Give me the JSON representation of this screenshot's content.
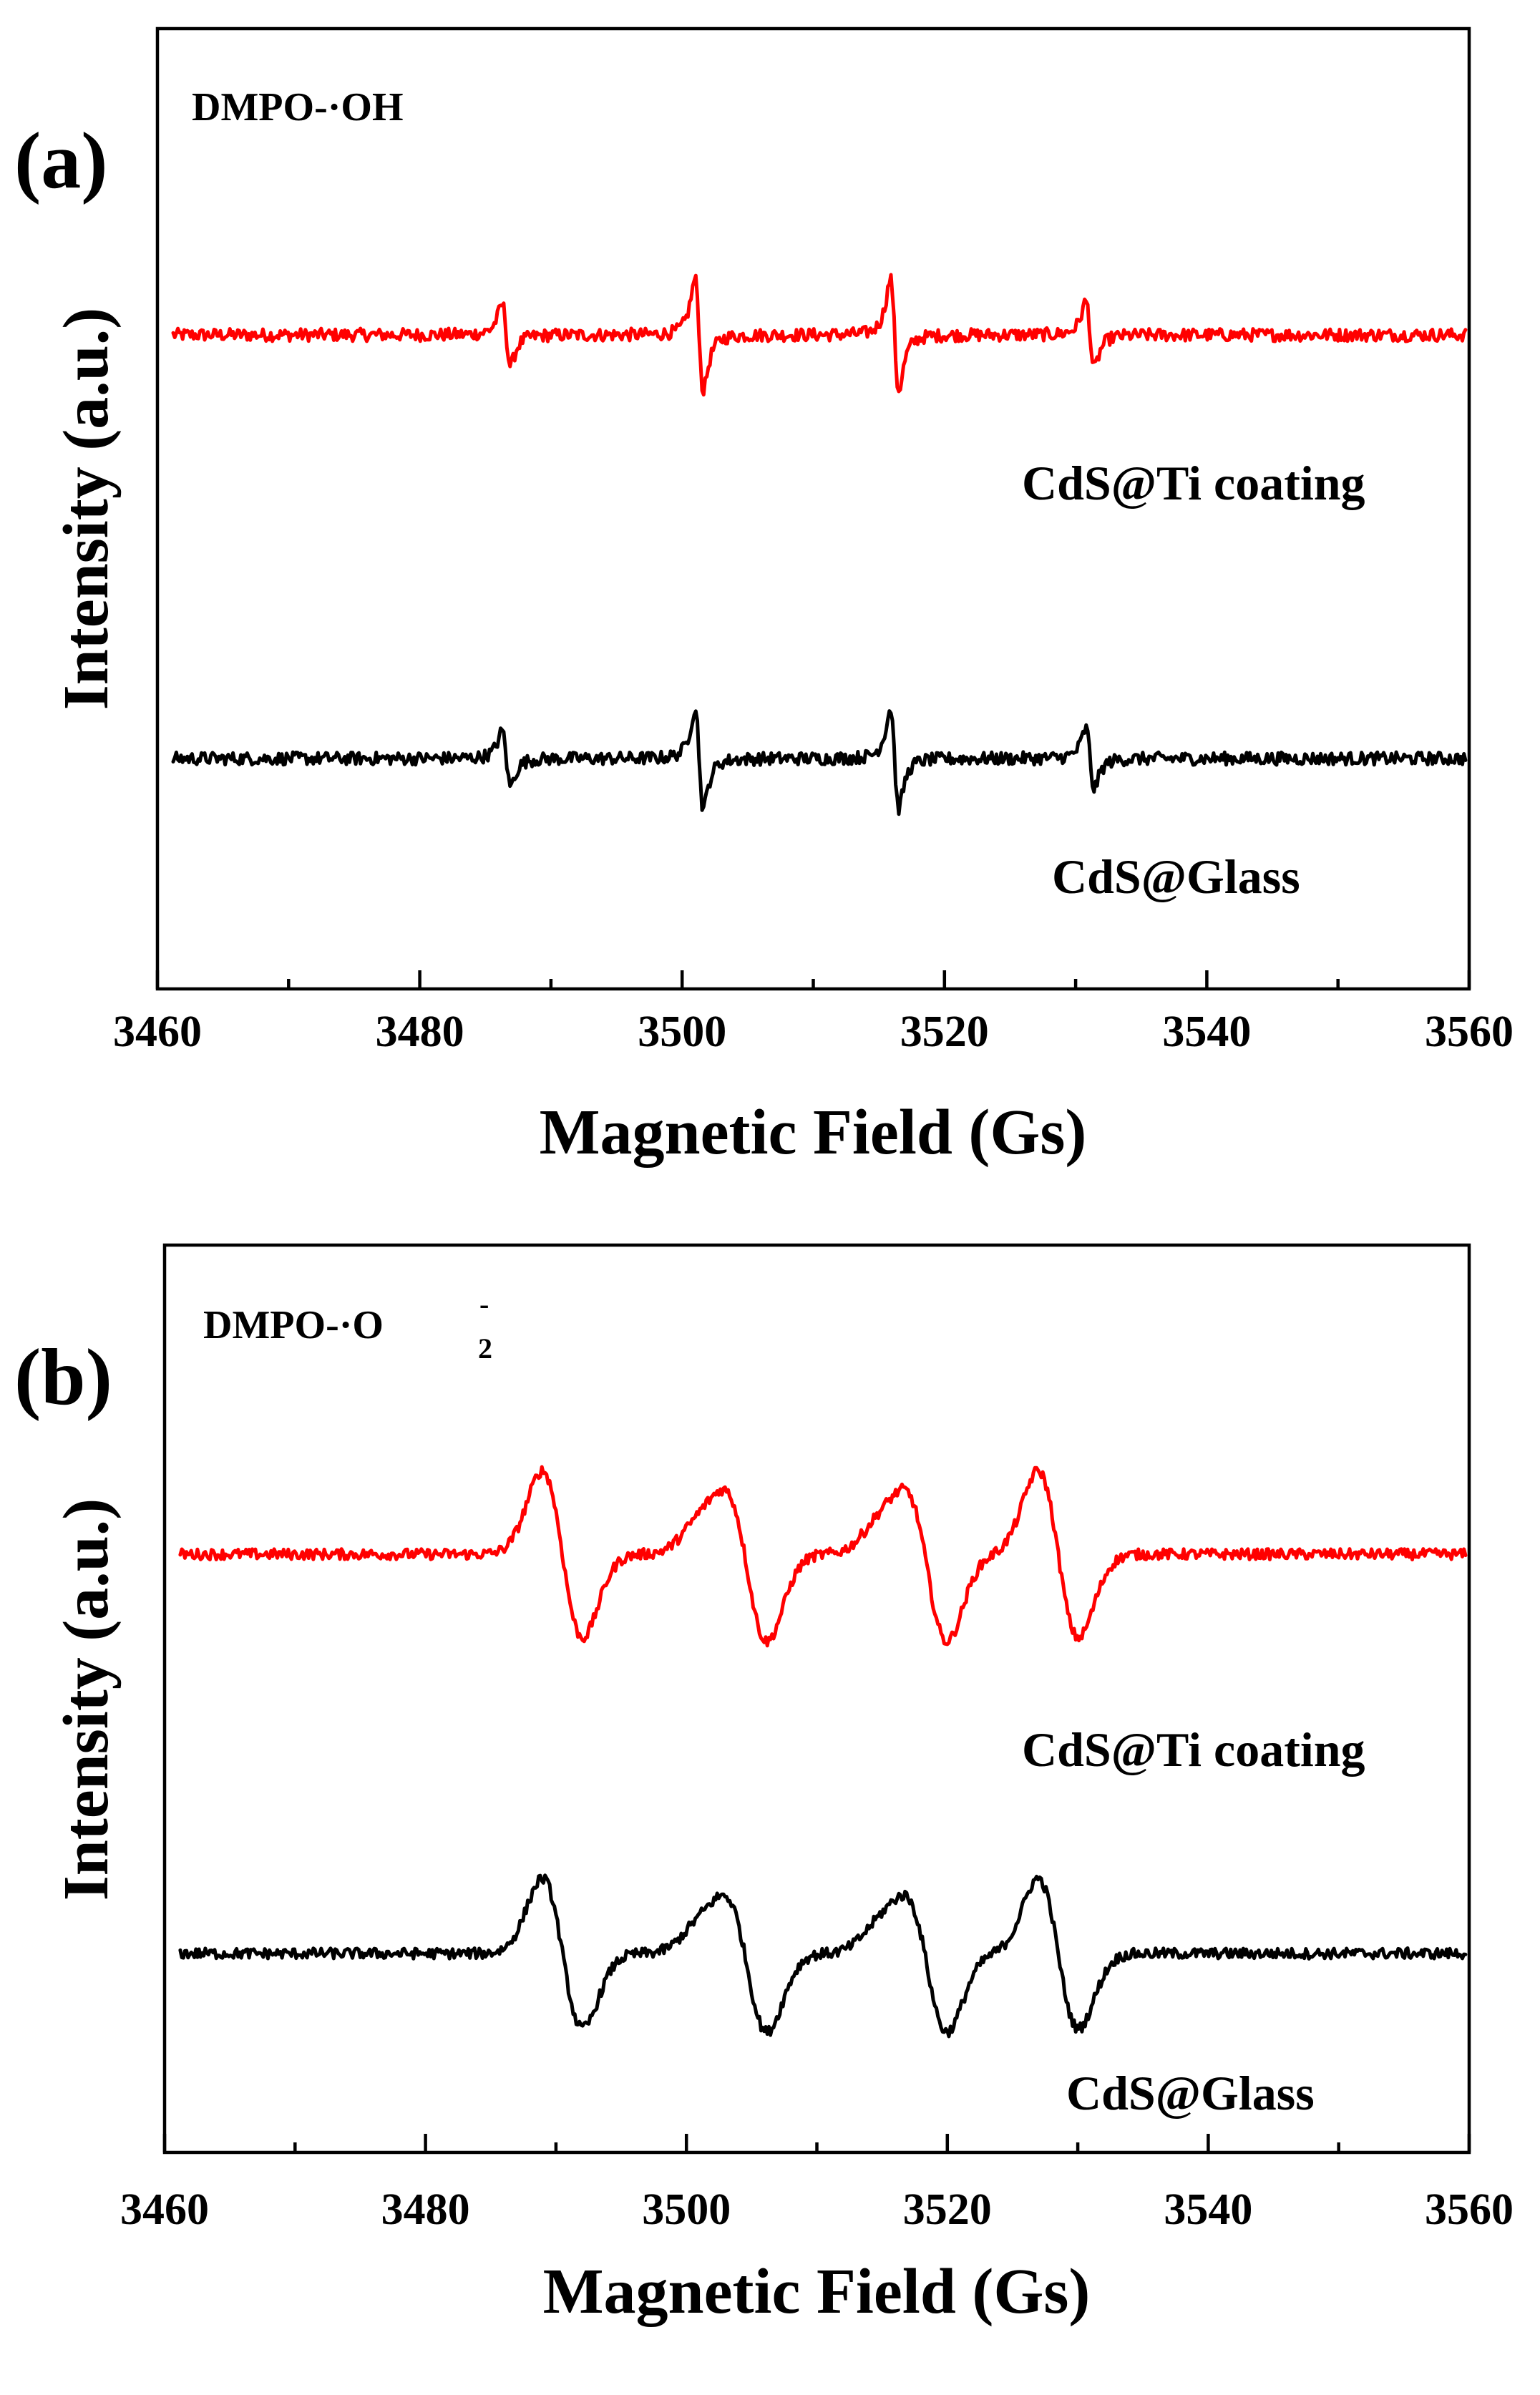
{
  "colors": {
    "ti_coating": "#ff0000",
    "glass": "#000000",
    "axes": "#000000",
    "background": "#ffffff"
  },
  "chart_data": [
    {
      "type": "line",
      "panel": "(a)",
      "annotation": "DMPO-·OH",
      "species": {
        "prefix": "DMPO-·",
        "main": "OH",
        "sub": "",
        "sup": ""
      },
      "xlabel": "Magnetic Field (Gs)",
      "ylabel": "Intensity (a.u.)",
      "xlim": [
        3460,
        3560
      ],
      "xticks": [
        3460,
        3480,
        3500,
        3520,
        3540,
        3560
      ],
      "x_minor_step": 10,
      "yticks": "none",
      "grid": false,
      "peak_shape": "narrow",
      "peak_centers": [
        3486.6,
        3501.3,
        3516.2,
        3531.1
      ],
      "peak_amplitudes": [
        0.55,
        1.0,
        1.0,
        0.6
      ],
      "series": [
        {
          "name": "CdS@Ti coating",
          "color": "#ff0000",
          "baseline": 1.0,
          "amplitude": 0.38,
          "noise": 0.03
        },
        {
          "name": "CdS@Glass",
          "color": "#000000",
          "baseline": 0.0,
          "amplitude": 0.34,
          "noise": 0.03
        }
      ]
    },
    {
      "type": "line",
      "panel": "(b)",
      "annotation": "DMPO-·O2⁻",
      "species": {
        "prefix": "DMPO-·",
        "main": "O",
        "sub": "2",
        "sup": "-"
      },
      "xlabel": "Magnetic Field (Gs)",
      "ylabel": "Intensity (a.u.)",
      "xlim": [
        3460,
        3560
      ],
      "xticks": [
        3460,
        3480,
        3500,
        3520,
        3540,
        3560
      ],
      "x_minor_step": 10,
      "yticks": "none",
      "grid": false,
      "peak_shape": "broad",
      "peak_centers": [
        3490.5,
        3502.2,
        3504.7,
        3516.0,
        3518.5,
        3528.5
      ],
      "peak_amplitudes": [
        1.0,
        0.3,
        1.0,
        0.3,
        1.0,
        1.0
      ],
      "series": [
        {
          "name": "CdS@Ti coating",
          "color": "#ff0000",
          "baseline": 1.0,
          "amplitude": 0.4,
          "noise": 0.025
        },
        {
          "name": "CdS@Glass",
          "color": "#000000",
          "baseline": 0.0,
          "amplitude": 0.36,
          "noise": 0.025
        }
      ]
    }
  ]
}
